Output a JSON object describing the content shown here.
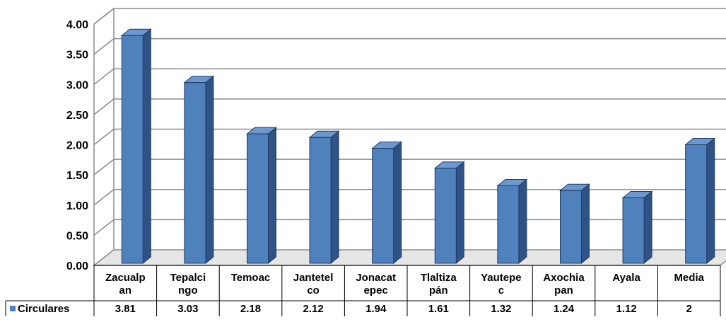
{
  "chart_data": {
    "type": "bar",
    "style": "3d-column",
    "categories": [
      [
        "Zacualp",
        "an"
      ],
      [
        "Tepalci",
        "ngo"
      ],
      [
        "Temoac"
      ],
      [
        "Jantetel",
        "co"
      ],
      [
        "Jonacat",
        "epec"
      ],
      [
        "Tlaltiza",
        "pán"
      ],
      [
        "Yautepe",
        "c"
      ],
      [
        "Axochia",
        "pan"
      ],
      [
        "Ayala"
      ],
      [
        "Media"
      ]
    ],
    "series": [
      {
        "name": "Circulares",
        "color": "#4F81BD",
        "values": [
          3.81,
          3.03,
          2.18,
          2.12,
          1.94,
          1.61,
          1.32,
          1.24,
          1.12,
          2
        ],
        "value_labels": [
          "3.81",
          "3.03",
          "2.18",
          "2.12",
          "1.94",
          "1.61",
          "1.32",
          "1.24",
          "1.12",
          "2"
        ]
      }
    ],
    "yticks": [
      "0.00",
      "0.50",
      "1.00",
      "1.50",
      "2.00",
      "2.50",
      "3.00",
      "3.50",
      "4.00"
    ],
    "ylim": [
      0,
      4
    ],
    "grid": true,
    "legend": "data-table",
    "title": "",
    "xlabel": "",
    "ylabel": ""
  }
}
